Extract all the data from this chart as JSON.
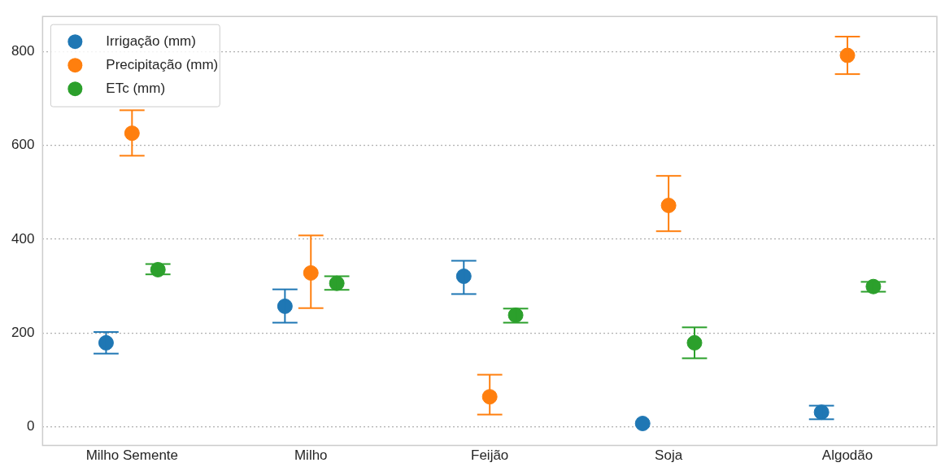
{
  "chart_data": {
    "type": "scatter",
    "categories": [
      "Milho Semente",
      "Milho",
      "Feijão",
      "Soja",
      "Algodão"
    ],
    "series": [
      {
        "name": "Irrigação (mm)",
        "color": "#1f77b4",
        "values": [
          179,
          257,
          321,
          7,
          31
        ],
        "errors": [
          [
            156,
            202
          ],
          [
            222,
            293
          ],
          [
            283,
            354
          ],
          null,
          [
            16,
            45
          ]
        ]
      },
      {
        "name": "Precipitação (mm)",
        "color": "#ff7f0e",
        "values": [
          626,
          328,
          64,
          472,
          792
        ],
        "errors": [
          [
            578,
            675
          ],
          [
            253,
            408
          ],
          [
            26,
            111
          ],
          [
            417,
            535
          ],
          [
            752,
            832
          ]
        ]
      },
      {
        "name": "ETc (mm)",
        "color": "#2ca02c",
        "values": [
          335,
          306,
          238,
          179,
          299
        ],
        "errors": [
          [
            325,
            347
          ],
          [
            292,
            321
          ],
          [
            222,
            252
          ],
          [
            146,
            212
          ],
          [
            288,
            309
          ]
        ]
      }
    ],
    "ylim": [
      -40,
      875
    ],
    "yticks": [
      0,
      200,
      400,
      600,
      800
    ],
    "grid": "y",
    "legend": "top left",
    "marker": "circle"
  }
}
